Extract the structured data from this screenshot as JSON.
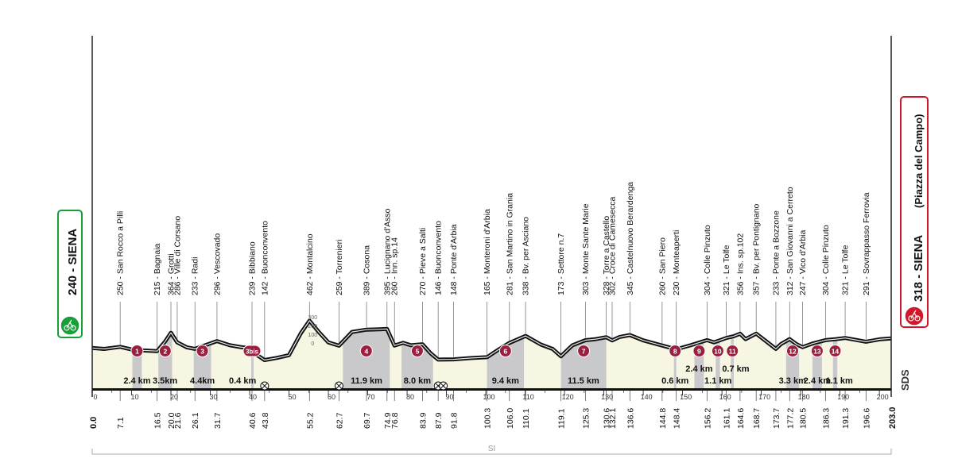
{
  "start": {
    "city": "SIENA",
    "elevation": "240",
    "label": "240 - SIENA",
    "badge_icon": "cyclist-icon",
    "color": "#1a9e3a"
  },
  "finish": {
    "city": "SIENA (Piazza del Campo)",
    "elevation": "318",
    "label": "318 - SIENA",
    "sub": "(Piazza del Campo)",
    "badge_icon": "cyclist-icon",
    "color": "#d0182a"
  },
  "colors": {
    "profile_fill": "#f6f6e2",
    "sector_fill": "#c9c9cb",
    "line": "#111111",
    "marker": "#9b2040"
  },
  "logo": "SDS",
  "footer_label": "SI",
  "mini_scale": [
    "300",
    "200",
    "100",
    "0"
  ],
  "chart_data": {
    "type": "area",
    "title": "",
    "xlabel": "",
    "ylabel": "",
    "x_unit": "km",
    "xlim": [
      0,
      203
    ],
    "ylim": [
      0,
      700
    ],
    "x_ticks": [
      0,
      10,
      20,
      30,
      40,
      50,
      60,
      70,
      80,
      90,
      100,
      110,
      120,
      130,
      140,
      150,
      160,
      170,
      180,
      190,
      200
    ],
    "profile": [
      [
        0.0,
        240
      ],
      [
        3,
        232
      ],
      [
        7.1,
        250
      ],
      [
        10,
        228
      ],
      [
        13,
        220
      ],
      [
        16.5,
        215
      ],
      [
        18.5,
        292
      ],
      [
        20.0,
        364
      ],
      [
        21.6,
        286
      ],
      [
        24,
        246
      ],
      [
        26.1,
        233
      ],
      [
        29,
        266
      ],
      [
        31.7,
        296
      ],
      [
        35,
        262
      ],
      [
        38,
        246
      ],
      [
        40.6,
        239
      ],
      [
        42,
        180
      ],
      [
        43.8,
        142
      ],
      [
        47,
        160
      ],
      [
        50,
        182
      ],
      [
        53,
        360
      ],
      [
        55.2,
        462
      ],
      [
        57.5,
        372
      ],
      [
        60,
        286
      ],
      [
        62.7,
        259
      ],
      [
        66,
        370
      ],
      [
        69.7,
        389
      ],
      [
        73,
        392
      ],
      [
        74.9,
        395
      ],
      [
        76.8,
        260
      ],
      [
        79,
        282
      ],
      [
        81,
        262
      ],
      [
        83.9,
        270
      ],
      [
        86,
        196
      ],
      [
        87.9,
        146
      ],
      [
        90,
        147
      ],
      [
        91.8,
        148
      ],
      [
        96,
        158
      ],
      [
        100.3,
        165
      ],
      [
        103,
        222
      ],
      [
        106.0,
        281
      ],
      [
        110.1,
        338
      ],
      [
        114,
        268
      ],
      [
        117,
        232
      ],
      [
        119.1,
        173
      ],
      [
        122,
        262
      ],
      [
        125.3,
        303
      ],
      [
        128,
        312
      ],
      [
        130.6,
        328
      ],
      [
        132.1,
        302
      ],
      [
        134,
        330
      ],
      [
        136.6,
        345
      ],
      [
        140,
        302
      ],
      [
        144.8,
        260
      ],
      [
        148.4,
        230
      ],
      [
        152,
        262
      ],
      [
        156.2,
        304
      ],
      [
        158,
        286
      ],
      [
        161.1,
        321
      ],
      [
        163,
        336
      ],
      [
        164.6,
        356
      ],
      [
        166,
        312
      ],
      [
        168.7,
        357
      ],
      [
        171,
        300
      ],
      [
        173.7,
        233
      ],
      [
        175,
        272
      ],
      [
        177.2,
        312
      ],
      [
        179,
        270
      ],
      [
        180.5,
        247
      ],
      [
        183,
        276
      ],
      [
        186.3,
        304
      ],
      [
        189,
        312
      ],
      [
        191.3,
        321
      ],
      [
        194,
        306
      ],
      [
        196.6,
        291
      ],
      [
        200,
        310
      ],
      [
        203.0,
        318
      ]
    ],
    "waypoints": [
      {
        "km": "7.1",
        "x": 7.1,
        "label": "250 - San Rocco a Pilli"
      },
      {
        "km": "16.5",
        "x": 16.5,
        "label": "215 - Bagnaia"
      },
      {
        "km": "20.0",
        "x": 20.0,
        "label": "364 - Grotti"
      },
      {
        "km": "21.6",
        "x": 21.6,
        "label": "286 - Ville di Corsano"
      },
      {
        "km": "26.1",
        "x": 26.1,
        "label": "233 - Radi"
      },
      {
        "km": "31.7",
        "x": 31.7,
        "label": "296 - Vescovado"
      },
      {
        "km": "40.6",
        "x": 40.6,
        "label": "239 - Bibbiano"
      },
      {
        "km": "43.8",
        "x": 43.8,
        "label": "142 - Buonconvento"
      },
      {
        "km": "55.2",
        "x": 55.2,
        "label": "462 - Montalcino"
      },
      {
        "km": "62.7",
        "x": 62.7,
        "label": "259 - Torrenieri"
      },
      {
        "km": "69.7",
        "x": 69.7,
        "label": "389 - Cosona"
      },
      {
        "km": "74.9",
        "x": 74.9,
        "label": "395 - Lucignano d'Asso"
      },
      {
        "km": "76.8",
        "x": 76.8,
        "label": "260 - Inn. sp.14"
      },
      {
        "km": "83.9",
        "x": 83.9,
        "label": "270 - Pieve a Salti"
      },
      {
        "km": "87.9",
        "x": 87.9,
        "label": "146 - Buonconvento"
      },
      {
        "km": "91.8",
        "x": 91.8,
        "label": "148 - Ponte d'Arbia"
      },
      {
        "km": "100.3",
        "x": 100.3,
        "label": "165 - Monteroni d'Arbia"
      },
      {
        "km": "106.0",
        "x": 106.0,
        "label": "281 - San Martino in Grania"
      },
      {
        "km": "110.1",
        "x": 110.1,
        "label": "338 - Bv. per Asciano"
      },
      {
        "km": "119.1",
        "x": 119.1,
        "label": "173 - Settore n.7"
      },
      {
        "km": "125.3",
        "x": 125.3,
        "label": "303 - Monte Sante Marie"
      },
      {
        "km": "130.6",
        "x": 130.6,
        "label": "328 - Torre a Castello"
      },
      {
        "km": "132.1",
        "x": 132.1,
        "label": "302 - Croce di Camesecca"
      },
      {
        "km": "136.6",
        "x": 136.6,
        "label": "345 - Castelnuovo Berardenga"
      },
      {
        "km": "144.8",
        "x": 144.8,
        "label": "260 - San Piero"
      },
      {
        "km": "148.4",
        "x": 148.4,
        "label": "230 - Monteaperti"
      },
      {
        "km": "156.2",
        "x": 156.2,
        "label": "304 - Colle Pinzuto"
      },
      {
        "km": "161.1",
        "x": 161.1,
        "label": "321 - Le Tolfe"
      },
      {
        "km": "164.6",
        "x": 164.6,
        "label": "356 - Ins. sp.102"
      },
      {
        "km": "168.7",
        "x": 168.7,
        "label": "357 - Bv. per Pontignano"
      },
      {
        "km": "173.7",
        "x": 173.7,
        "label": "233 - Ponte a Bozzone"
      },
      {
        "km": "177.2",
        "x": 177.2,
        "label": "312 - San Giovanni a Cerreto"
      },
      {
        "km": "180.5",
        "x": 180.5,
        "label": "247 - Vico d'Arbia"
      },
      {
        "km": "186.3",
        "x": 186.3,
        "label": "304 - Colle Pinzuto"
      },
      {
        "km": "191.3",
        "x": 191.3,
        "label": "321 - Le Tolfe"
      },
      {
        "km": "196.6",
        "x": 196.6,
        "label": "291 - Sovrappasso Ferrovia"
      }
    ],
    "sectors": [
      {
        "id": "1",
        "start": 10.2,
        "end": 12.6,
        "length": "2.4 km"
      },
      {
        "id": "2",
        "start": 16.8,
        "end": 20.3,
        "length": "3.5km"
      },
      {
        "id": "3",
        "start": 25.8,
        "end": 30.2,
        "length": "4.4km"
      },
      {
        "id": "3bis",
        "start": 40.4,
        "end": 40.8,
        "length": "0.4 km"
      },
      {
        "id": "4",
        "start": 63.7,
        "end": 75.6,
        "length": "11.9 km"
      },
      {
        "id": "5",
        "start": 78.6,
        "end": 86.6,
        "length": "8.0 km"
      },
      {
        "id": "6",
        "start": 100.3,
        "end": 109.7,
        "length": "9.4 km"
      },
      {
        "id": "7",
        "start": 119.1,
        "end": 130.6,
        "length": "11.5 km"
      },
      {
        "id": "8",
        "start": 147.8,
        "end": 148.4,
        "length": "0.6 km"
      },
      {
        "id": "9",
        "start": 153.0,
        "end": 155.4,
        "length": "2.4 km"
      },
      {
        "id": "10",
        "start": 158.4,
        "end": 159.5,
        "length": "1.1 km"
      },
      {
        "id": "11",
        "start": 162.3,
        "end": 163.0,
        "length": "0.7 km"
      },
      {
        "id": "12",
        "start": 176.3,
        "end": 179.6,
        "length": "3.3 km"
      },
      {
        "id": "13",
        "start": 183.0,
        "end": 185.4,
        "length": "2.4 km"
      },
      {
        "id": "14",
        "start": 188.2,
        "end": 189.3,
        "length": "1.1 km"
      }
    ],
    "start_km": "0.0",
    "finish_km": "203.0"
  }
}
